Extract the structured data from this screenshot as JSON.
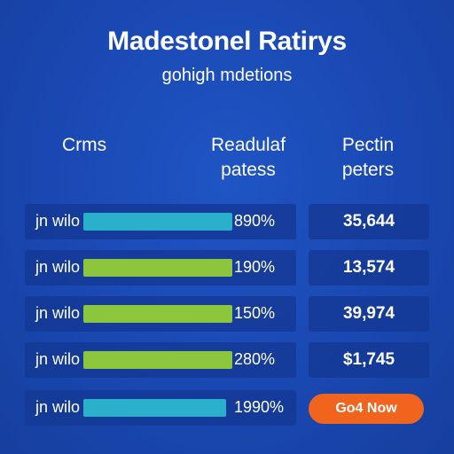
{
  "header": {
    "title": "Madestonel Ratirys",
    "subtitle": "gohigh mdetions"
  },
  "columns": {
    "col1": "Crms",
    "col2_line1": "Readulaf",
    "col2_line2": "patess",
    "col3_line1": "Pectin",
    "col3_line2": "peters"
  },
  "rows": [
    {
      "label": "jn wilo",
      "percent": "890%",
      "value": "35,644",
      "fill_fraction": 1.0,
      "bar_color": "#2bb0cc"
    },
    {
      "label": "jn wilo",
      "percent": "190%",
      "value": "13,574",
      "fill_fraction": 1.0,
      "bar_color": "#8cc63e"
    },
    {
      "label": "jn wilo",
      "percent": "150%",
      "value": "39,974",
      "fill_fraction": 1.0,
      "bar_color": "#8cc63e"
    },
    {
      "label": "jn wilo",
      "percent": "280%",
      "value": "$1,745",
      "fill_fraction": 1.0,
      "bar_color": "#8cc63e"
    },
    {
      "label": "jn wilo",
      "percent": "1990%",
      "value": "",
      "fill_fraction": 0.96,
      "bar_color": "#2bb0cc"
    }
  ],
  "cta": {
    "label": "Go4 Now",
    "color": "#f0641e"
  },
  "colors": {
    "background": "#1a48b2",
    "row_panel": "#153a96"
  }
}
